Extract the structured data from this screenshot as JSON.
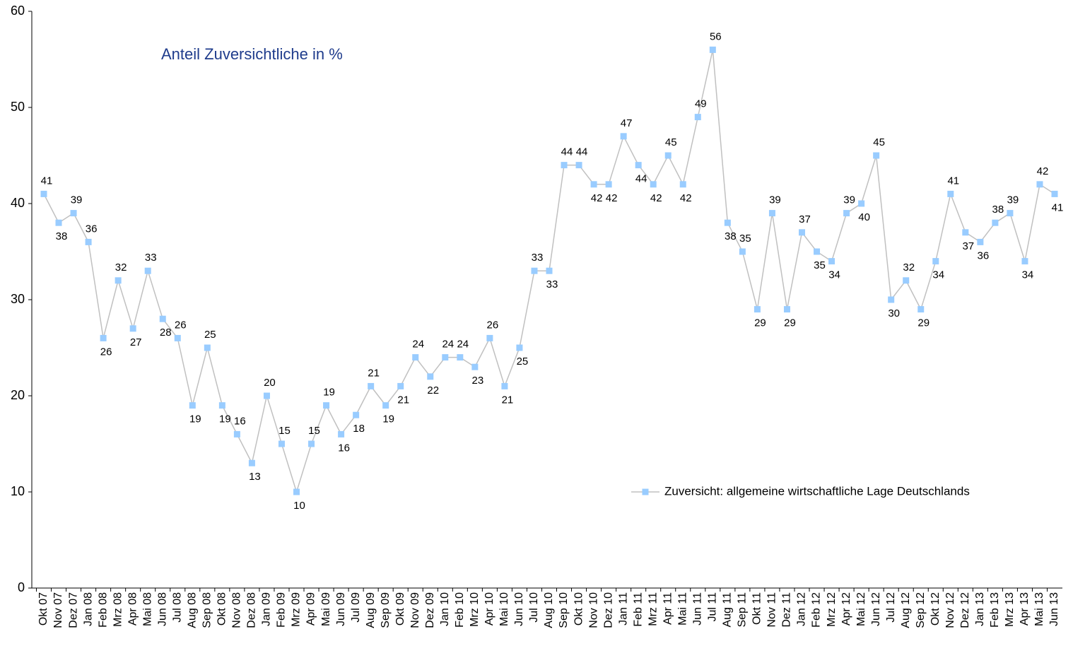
{
  "chart_data": {
    "type": "line",
    "title": "Anteil Zuversichtliche in %",
    "categories": [
      "Okt 07",
      "Nov 07",
      "Dez 07",
      "Jan 08",
      "Feb 08",
      "Mrz 08",
      "Apr 08",
      "Mai 08",
      "Jun 08",
      "Jul 08",
      "Aug 08",
      "Sep 08",
      "Okt 08",
      "Nov 08",
      "Dez 08",
      "Jan 09",
      "Feb 09",
      "Mrz 09",
      "Apr 09",
      "Mai 09",
      "Jun 09",
      "Jul 09",
      "Aug 09",
      "Sep 09",
      "Okt 09",
      "Nov 09",
      "Dez 09",
      "Jan 10",
      "Feb 10",
      "Mrz 10",
      "Apr 10",
      "Mai 10",
      "Jun 10",
      "Jul 10",
      "Aug 10",
      "Sep 10",
      "Okt 10",
      "Nov 10",
      "Dez 10",
      "Jan 11",
      "Feb 11",
      "Mrz 11",
      "Apr 11",
      "Mai 11",
      "Jun 11",
      "Jul 11",
      "Aug 11",
      "Sep 11",
      "Okt 11",
      "Nov 11",
      "Dez 11",
      "Jan 12",
      "Feb 12",
      "Mrz 12",
      "Apr 12",
      "Mai 12",
      "Jun 12",
      "Jul 12",
      "Aug 12",
      "Sep 12",
      "Okt 12",
      "Nov 12",
      "Dez 12",
      "Jan 13",
      "Feb 13",
      "Mrz 13",
      "Apr 13",
      "Mai 13",
      "Jun 13"
    ],
    "series": [
      {
        "name": "Zuversicht: allgemeine wirtschaftliche Lage Deutschlands",
        "color": "#99ccff",
        "line_color": "#c0c0c0",
        "values": [
          41,
          38,
          39,
          36,
          26,
          32,
          27,
          33,
          28,
          26,
          19,
          25,
          19,
          16,
          13,
          20,
          15,
          10,
          15,
          19,
          16,
          18,
          21,
          19,
          21,
          24,
          22,
          24,
          24,
          23,
          26,
          21,
          25,
          33,
          33,
          44,
          44,
          42,
          42,
          47,
          44,
          42,
          45,
          42,
          49,
          56,
          38,
          35,
          29,
          39,
          29,
          37,
          35,
          34,
          39,
          40,
          45,
          30,
          32,
          29,
          34,
          41,
          37,
          36,
          38,
          39,
          34,
          42,
          41
        ]
      }
    ],
    "ylim": [
      0,
      60
    ],
    "yticks": [
      0,
      10,
      20,
      30,
      40,
      50,
      60
    ],
    "grid": false
  }
}
